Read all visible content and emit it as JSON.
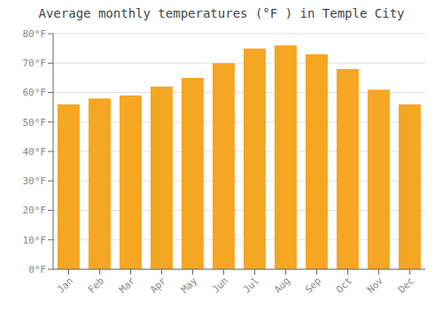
{
  "chart_data": {
    "type": "bar",
    "title": "Average monthly temperatures (°F ) in Temple City",
    "categories": [
      "Jan",
      "Feb",
      "Mar",
      "Apr",
      "May",
      "Jun",
      "Jul",
      "Aug",
      "Sep",
      "Oct",
      "Nov",
      "Dec"
    ],
    "values": [
      56,
      58,
      59,
      62,
      65,
      70,
      75,
      76,
      73,
      68,
      61,
      56
    ],
    "color": "#F5A623",
    "ylim": [
      0,
      80
    ],
    "yticks": [
      {
        "value": 0,
        "label": "0°F"
      },
      {
        "value": 10,
        "label": "10°F"
      },
      {
        "value": 20,
        "label": "20°F"
      },
      {
        "value": 30,
        "label": "30°F"
      },
      {
        "value": 40,
        "label": "40°F"
      },
      {
        "value": 50,
        "label": "50°F"
      },
      {
        "value": 60,
        "label": "60°F"
      },
      {
        "value": 70,
        "label": "70°F"
      },
      {
        "value": 80,
        "label": "80°F"
      }
    ],
    "grid": true
  }
}
